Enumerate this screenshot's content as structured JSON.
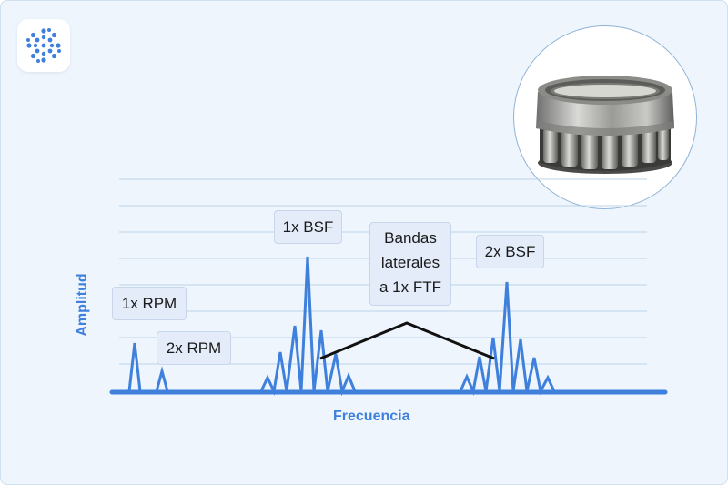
{
  "labels": {
    "rpm1": "1x RPM",
    "rpm2": "2x RPM",
    "bsf1": "1x BSF",
    "bsf2": "2x BSF",
    "sidebands": [
      "Bandas",
      "laterales",
      "a 1x FTF"
    ]
  },
  "axes": {
    "x_title": "Frecuencia",
    "y_title": "Amplitud"
  },
  "images": {
    "product": "tapered-roller-bearing",
    "logo": "dotted-circle-logo"
  },
  "colors": {
    "accent": "#3f80dc",
    "background": "#eef5fc",
    "label_bg": "#e3ecf8",
    "bracket": "#111111"
  }
}
